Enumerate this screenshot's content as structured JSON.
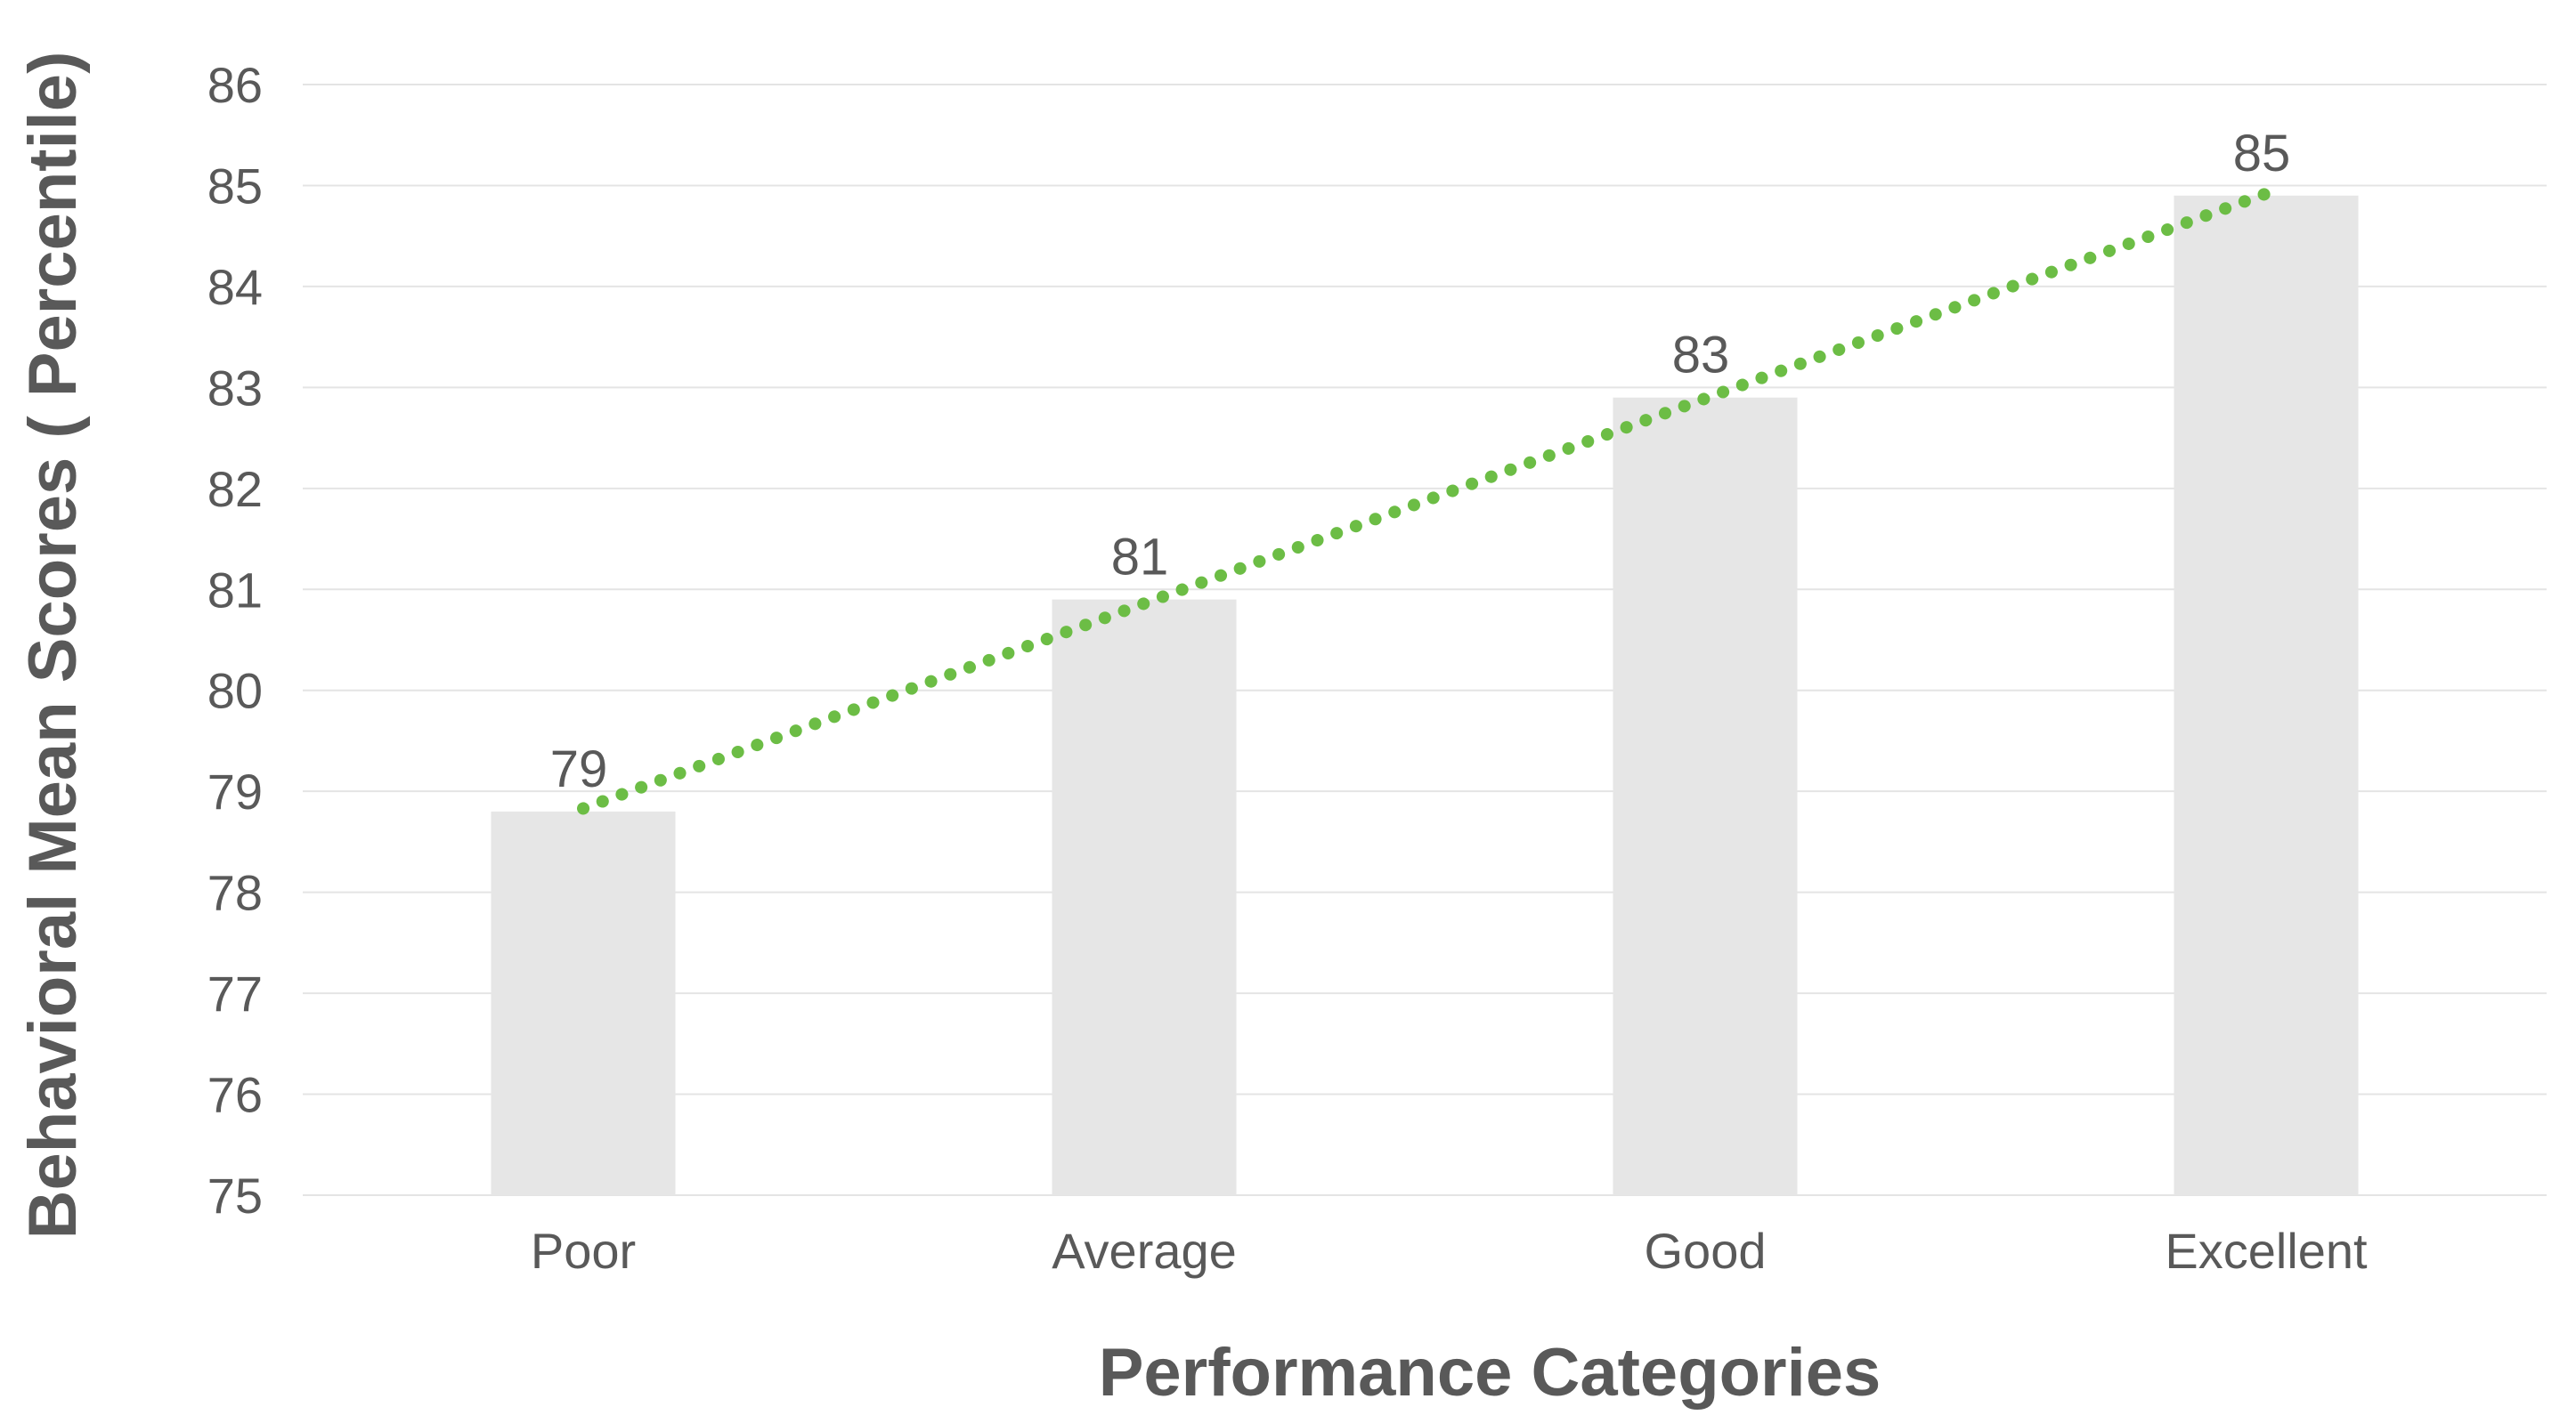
{
  "chart_data": {
    "type": "bar",
    "title": "",
    "xlabel": "Performance Categories",
    "ylabel": "Behavioral Mean Scores ( Percentile)",
    "categories": [
      "Poor",
      "Average",
      "Good",
      "Excellent"
    ],
    "values": [
      78.8,
      80.9,
      82.9,
      84.9
    ],
    "data_labels": [
      "79",
      "81",
      "83",
      "85"
    ],
    "ylim": [
      75,
      86
    ],
    "yticks": [
      75,
      76,
      77,
      78,
      79,
      80,
      81,
      82,
      83,
      84,
      85,
      86
    ],
    "grid": true,
    "legend": "none",
    "trendline": {
      "type": "linear",
      "style": "dotted"
    },
    "colors": {
      "bar": "#e6e6e6",
      "trend": "#6cbd45",
      "grid": "#e4e4e4",
      "text": "#595959"
    }
  }
}
